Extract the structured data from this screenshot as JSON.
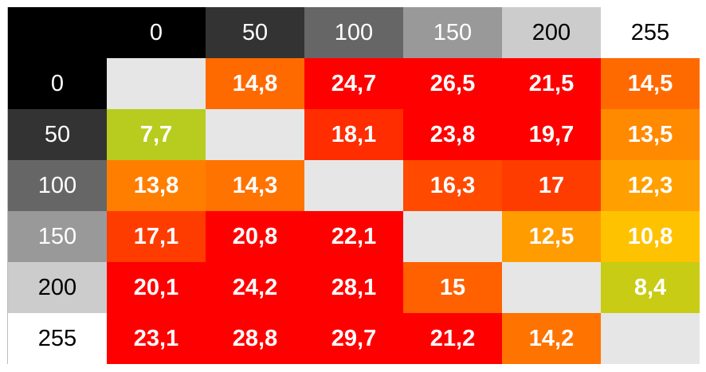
{
  "chart_data": {
    "type": "heatmap",
    "title": "",
    "xlabel": "",
    "ylabel": "",
    "corner_color": "#000000",
    "column_headers": [
      {
        "label": "0",
        "bg": "#000000",
        "fg": "#ffffff"
      },
      {
        "label": "50",
        "bg": "#333333",
        "fg": "#ffffff"
      },
      {
        "label": "100",
        "bg": "#666666",
        "fg": "#ffffff"
      },
      {
        "label": "150",
        "bg": "#999999",
        "fg": "#ffffff"
      },
      {
        "label": "200",
        "bg": "#cccccc",
        "fg": "#000000"
      },
      {
        "label": "255",
        "bg": "#ffffff",
        "fg": "#000000"
      }
    ],
    "row_headers": [
      {
        "label": "0",
        "bg": "#000000",
        "fg": "#ffffff"
      },
      {
        "label": "50",
        "bg": "#333333",
        "fg": "#ffffff"
      },
      {
        "label": "100",
        "bg": "#666666",
        "fg": "#ffffff"
      },
      {
        "label": "150",
        "bg": "#999999",
        "fg": "#ffffff"
      },
      {
        "label": "200",
        "bg": "#cccccc",
        "fg": "#000000"
      },
      {
        "label": "255",
        "bg": "#ffffff",
        "fg": "#000000"
      }
    ],
    "rows": [
      [
        {
          "text": "",
          "bg": "#e6e6e6"
        },
        {
          "text": "14,8",
          "bg": "#ff6a00"
        },
        {
          "text": "24,7",
          "bg": "#ff0000"
        },
        {
          "text": "26,5",
          "bg": "#ff0000"
        },
        {
          "text": "21,5",
          "bg": "#ff0000"
        },
        {
          "text": "14,5",
          "bg": "#ff6a00"
        }
      ],
      [
        {
          "text": "7,7",
          "bg": "#b8cc1f"
        },
        {
          "text": "",
          "bg": "#e6e6e6"
        },
        {
          "text": "18,1",
          "bg": "#ff2d00"
        },
        {
          "text": "23,8",
          "bg": "#ff0000"
        },
        {
          "text": "19,7",
          "bg": "#ff0000"
        },
        {
          "text": "13,5",
          "bg": "#ff8a00"
        }
      ],
      [
        {
          "text": "13,8",
          "bg": "#ff7e00"
        },
        {
          "text": "14,3",
          "bg": "#ff7300"
        },
        {
          "text": "",
          "bg": "#e6e6e6"
        },
        {
          "text": "16,3",
          "bg": "#ff4a00"
        },
        {
          "text": "17",
          "bg": "#ff3c00"
        },
        {
          "text": "12,3",
          "bg": "#ffa000"
        }
      ],
      [
        {
          "text": "17,1",
          "bg": "#ff3c00"
        },
        {
          "text": "20,8",
          "bg": "#ff0000"
        },
        {
          "text": "22,1",
          "bg": "#ff0000"
        },
        {
          "text": "",
          "bg": "#e6e6e6"
        },
        {
          "text": "12,5",
          "bg": "#ff9c00"
        },
        {
          "text": "10,8",
          "bg": "#ffc200"
        }
      ],
      [
        {
          "text": "20,1",
          "bg": "#ff0000"
        },
        {
          "text": "24,2",
          "bg": "#ff0000"
        },
        {
          "text": "28,1",
          "bg": "#ff0000"
        },
        {
          "text": "15",
          "bg": "#ff6000"
        },
        {
          "text": "",
          "bg": "#e6e6e6"
        },
        {
          "text": "8,4",
          "bg": "#c8cc14"
        }
      ],
      [
        {
          "text": "23,1",
          "bg": "#ff0000"
        },
        {
          "text": "28,8",
          "bg": "#ff0000"
        },
        {
          "text": "29,7",
          "bg": "#ff0000"
        },
        {
          "text": "21,2",
          "bg": "#ff0000"
        },
        {
          "text": "14,2",
          "bg": "#ff7300"
        },
        {
          "text": "",
          "bg": "#e6e6e6"
        }
      ]
    ]
  }
}
